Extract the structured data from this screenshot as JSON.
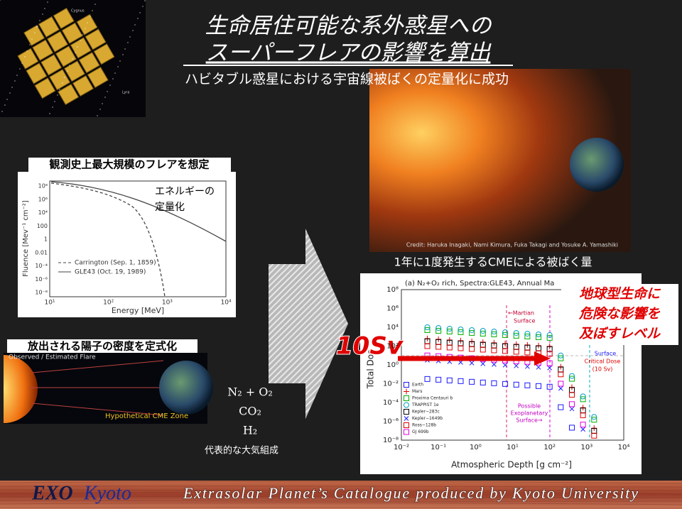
{
  "header": {
    "title_line1": "生命居住可能な系外惑星への",
    "title_line2": "スーパーフレアの影響を算出",
    "subtitle": "ハビタブル惑星における宇宙線被ばくの定量化に成功"
  },
  "kepler_image": {
    "labels": [
      "Cygnus",
      "Lyra"
    ]
  },
  "sun_image": {
    "credit": "Credit: Haruka Inagaki, Nami Kimura, Fuka Takagi and Yosuke A. Yamashiki"
  },
  "fluence_panel": {
    "caption": "観測史上最大規模のフレアを想定",
    "note": [
      "エネルギーの",
      "定量化"
    ],
    "ylabel": "Fluence [Mev⁻¹ cm⁻²]",
    "xlabel": "Energy [MeV]",
    "xticks": [
      "10¹",
      "10²",
      "10³",
      "10⁴"
    ],
    "yticks": [
      "10⁸",
      "10⁶",
      "10⁴",
      "100",
      "1",
      "0.01",
      "10⁻⁴",
      "10⁻⁶",
      "10⁻⁸"
    ],
    "legend": [
      "Carrington (Sep. 1, 1859)",
      "GLE43 (Oct. 19, 1989)"
    ]
  },
  "cme_panel": {
    "caption": "放出される陽子の密度を定式化",
    "labels": [
      "Observed / Estimated Flare",
      "Hypothetical CME Zone"
    ]
  },
  "atmosphere": {
    "compositions": [
      "N₂ + O₂",
      "CO₂",
      "H₂"
    ],
    "caption": "代表的な大気組成"
  },
  "dose_panel": {
    "caption": "1年に1度発生するCMEによる被ばく量",
    "title": "(a) N₂+O₂ rich, Spectra:GLE43, Annual Ma",
    "ylabel": "Total Dos",
    "xlabel": "Atmospheric Depth [g cm⁻²]",
    "xticks": [
      "10⁻²",
      "10⁻¹",
      "10⁰",
      "10¹",
      "10²",
      "10³",
      "10⁴"
    ],
    "yticks": [
      "10⁸",
      "10⁶",
      "10⁴",
      "10²",
      "10⁰",
      "10⁻²",
      "10⁻⁴",
      "10⁻⁶",
      "10⁻⁸"
    ],
    "annotations": {
      "martian": [
        "←Martian",
        "Surface"
      ],
      "exo": [
        "Possible",
        "Exoplanetary",
        "Surface→"
      ],
      "critical": [
        "Critical Dose",
        "(10 Sv)"
      ],
      "surface": "Surface"
    },
    "legend": [
      {
        "name": "Earth",
        "color": "#1a1aff",
        "marker": "square"
      },
      {
        "name": "Mars",
        "color": "#e00000",
        "marker": "plus"
      },
      {
        "name": "Proxima Centauri b",
        "color": "#00b000",
        "marker": "square"
      },
      {
        "name": "TRAPPIST 1e",
        "color": "#00a0c0",
        "marker": "circle"
      },
      {
        "name": "Kepler−283c",
        "color": "#000000",
        "marker": "square"
      },
      {
        "name": "Kepler−1649b",
        "color": "#1a1aff",
        "marker": "cross"
      },
      {
        "name": "Ross−128b",
        "color": "#e00000",
        "marker": "square"
      },
      {
        "name": "GJ 699b",
        "color": "#e000e0",
        "marker": "square"
      }
    ]
  },
  "callout": {
    "dose": "10Sv",
    "warning": [
      "地球型生命に",
      "危険な影響を",
      "及ぼすレベル"
    ]
  },
  "footer": {
    "logo_exo": "EXO",
    "logo_kyoto": "Kyoto",
    "tagline": "Extrasolar Planet’s Catalogue produced by Kyoto University"
  }
}
